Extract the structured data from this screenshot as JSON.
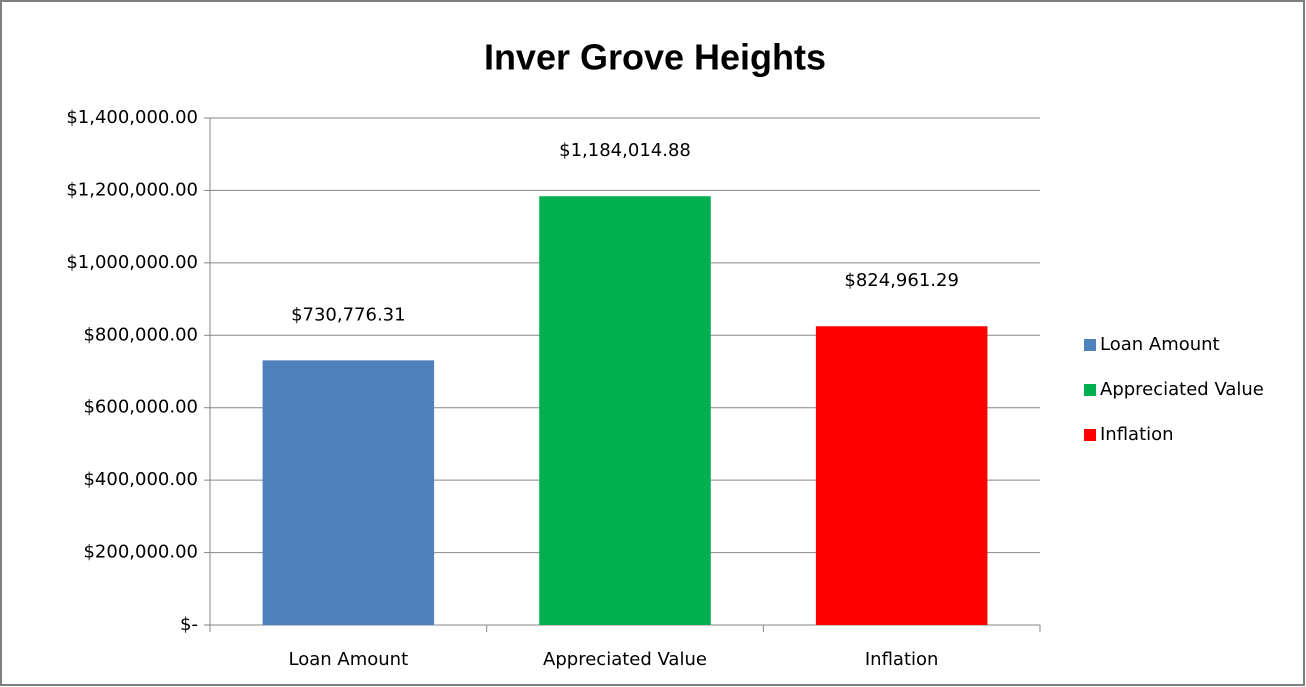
{
  "chart_data": {
    "type": "bar",
    "title": "Inver Grove Heights",
    "categories": [
      "Loan Amount",
      "Appreciated Value",
      "Inflation"
    ],
    "values": [
      730776.31,
      1184014.88,
      824961.29
    ],
    "value_labels": [
      "$730,776.31",
      "$1,184,014.88",
      "$824,961.29"
    ],
    "colors": [
      "#4f81bd",
      "#00b050",
      "#ff0000"
    ],
    "ylim": [
      0,
      1400000
    ],
    "yticks": [
      {
        "value": 0,
        "label": "$-"
      },
      {
        "value": 200000,
        "label": "$200,000.00"
      },
      {
        "value": 400000,
        "label": "$400,000.00"
      },
      {
        "value": 600000,
        "label": "$600,000.00"
      },
      {
        "value": 800000,
        "label": "$800,000.00"
      },
      {
        "value": 1000000,
        "label": "$1,000,000.00"
      },
      {
        "value": 1200000,
        "label": "$1,200,000.00"
      },
      {
        "value": 1400000,
        "label": "$1,400,000.00"
      }
    ],
    "grid": true,
    "legend": "right"
  }
}
